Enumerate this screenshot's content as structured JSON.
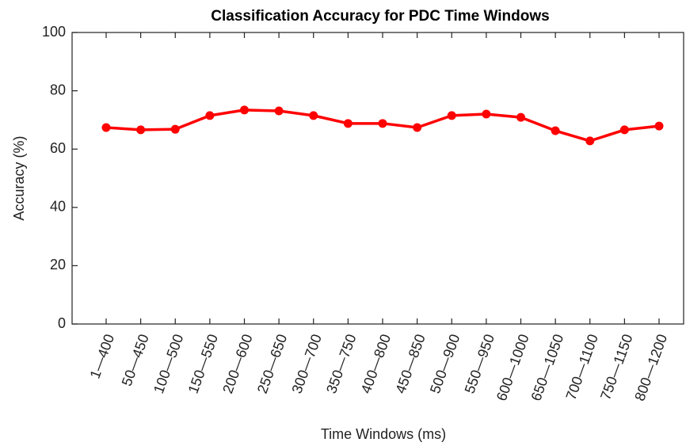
{
  "chart_data": {
    "type": "line",
    "title": "Classification Accuracy for PDC Time Windows",
    "xlabel": "Time Windows (ms)",
    "ylabel": "Accuracy (%)",
    "categories": [
      "1—400",
      "50—450",
      "100—500",
      "150—550",
      "200—600",
      "250—650",
      "300—700",
      "350—750",
      "400—800",
      "450—850",
      "500—900",
      "550—950",
      "600—1000",
      "650—1050",
      "700—1100",
      "750—1150",
      "800—1200"
    ],
    "values": [
      67.4,
      66.6,
      66.8,
      71.5,
      73.4,
      73.1,
      71.5,
      68.8,
      68.8,
      67.4,
      71.5,
      72.0,
      70.9,
      66.3,
      62.8,
      66.6,
      67.9
    ],
    "color": "#ff0000",
    "ylim": [
      0,
      100
    ],
    "yticks": [
      0,
      20,
      40,
      60,
      80,
      100
    ]
  }
}
